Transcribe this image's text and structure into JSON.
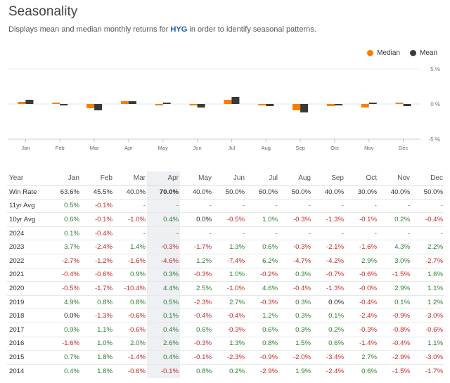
{
  "header": {
    "title": "Seasonality",
    "subtitle_pre": "Displays mean and median monthly returns for ",
    "ticker": "HYG",
    "subtitle_post": " in order to identify seasonal patterns."
  },
  "legend": {
    "median_label": "Median",
    "mean_label": "Mean",
    "median_color": "#f77f00",
    "mean_color": "#3a3a3a"
  },
  "chart_data": {
    "type": "bar",
    "categories": [
      "Jan",
      "Feb",
      "Mar",
      "Apr",
      "May",
      "Jun",
      "Jul",
      "Aug",
      "Sep",
      "Oct",
      "Nov",
      "Dec"
    ],
    "series": [
      {
        "name": "Median",
        "values": [
          0.3,
          0.2,
          -0.6,
          0.4,
          -0.2,
          -0.2,
          0.6,
          -0.2,
          -0.9,
          -0.3,
          -0.5,
          0.2
        ]
      },
      {
        "name": "Mean",
        "values": [
          0.6,
          -0.2,
          -0.9,
          0.4,
          0.2,
          -0.5,
          1.0,
          -0.3,
          -1.2,
          -0.2,
          0.2,
          -0.3
        ]
      }
    ],
    "ylim": [
      -5,
      5
    ],
    "yticks": [
      "5 %",
      "0 %",
      "-5 %"
    ],
    "grid": true,
    "legend_position": "top-right"
  },
  "table": {
    "columns": [
      "Year",
      "Jan",
      "Feb",
      "Mar",
      "Apr",
      "May",
      "Jun",
      "Jul",
      "Aug",
      "Sep",
      "Oct",
      "Nov",
      "Dec"
    ],
    "highlight_col": 4,
    "win_rate": [
      "Win Rate",
      "63.6%",
      "45.5%",
      "40.0%",
      "70.0%",
      "40.0%",
      "50.0%",
      "60.0%",
      "50.0%",
      "40.0%",
      "30.0%",
      "40.0%",
      "50.0%"
    ],
    "rows": [
      [
        "11yr Avg",
        "0.5%",
        "-0.1%",
        "-",
        "-",
        "-",
        "-",
        "-",
        "-",
        "-",
        "-",
        "-",
        "-"
      ],
      [
        "10yr Avg",
        "0.6%",
        "-0.1%",
        "-1.0%",
        "0.4%",
        "0.0%",
        "-0.5%",
        "1.0%",
        "-0.3%",
        "-1.3%",
        "-0.1%",
        "0.2%",
        "-0.4%"
      ],
      [
        "2024",
        "0.1%",
        "-0.4%",
        "-",
        "-",
        "-",
        "-",
        "-",
        "-",
        "-",
        "-",
        "-",
        "-"
      ],
      [
        "2023",
        "3.7%",
        "-2.4%",
        "1.4%",
        "-0.3%",
        "-1.7%",
        "1.3%",
        "0.6%",
        "-0.3%",
        "-2.1%",
        "-1.6%",
        "4.3%",
        "2.2%"
      ],
      [
        "2022",
        "-2.7%",
        "-1.2%",
        "-1.6%",
        "-4.6%",
        "1.2%",
        "-7.4%",
        "6.2%",
        "-4.7%",
        "-4.2%",
        "2.9%",
        "3.0%",
        "-2.7%"
      ],
      [
        "2021",
        "-0.4%",
        "-0.6%",
        "0.9%",
        "0.3%",
        "-0.3%",
        "1.0%",
        "-0.2%",
        "0.3%",
        "-0.7%",
        "-0.6%",
        "-1.5%",
        "1.6%"
      ],
      [
        "2020",
        "-0.5%",
        "-1.7%",
        "-10.4%",
        "4.4%",
        "2.5%",
        "-1.0%",
        "4.6%",
        "-0.4%",
        "-1.3%",
        "-0.0%",
        "2.9%",
        "1.1%"
      ],
      [
        "2019",
        "4.9%",
        "0.8%",
        "0.8%",
        "0.5%",
        "-2.3%",
        "2.7%",
        "-0.3%",
        "0.3%",
        "0.0%",
        "-0.4%",
        "0.1%",
        "1.2%"
      ],
      [
        "2018",
        "0.0%",
        "-1.3%",
        "-0.6%",
        "0.1%",
        "-0.4%",
        "-0.4%",
        "1.2%",
        "0.3%",
        "0.1%",
        "-2.4%",
        "-0.9%",
        "-3.0%"
      ],
      [
        "2017",
        "0.9%",
        "1.1%",
        "-0.6%",
        "0.4%",
        "0.6%",
        "-0.3%",
        "0.6%",
        "0.3%",
        "0.2%",
        "-0.3%",
        "-0.8%",
        "-0.6%"
      ],
      [
        "2016",
        "-1.6%",
        "1.0%",
        "2.0%",
        "2.6%",
        "-0.3%",
        "1.3%",
        "0.8%",
        "1.5%",
        "0.6%",
        "-1.4%",
        "-0.4%",
        "1.1%"
      ],
      [
        "2015",
        "0.7%",
        "1.8%",
        "-1.4%",
        "0.4%",
        "-0.1%",
        "-2.3%",
        "-0.9%",
        "-2.0%",
        "-3.4%",
        "2.7%",
        "-2.9%",
        "-3.0%"
      ],
      [
        "2014",
        "0.4%",
        "1.8%",
        "-0.6%",
        "-0.1%",
        "0.8%",
        "0.2%",
        "-2.9%",
        "1.9%",
        "-2.4%",
        "0.6%",
        "-1.5%",
        "-1.7%"
      ]
    ]
  }
}
